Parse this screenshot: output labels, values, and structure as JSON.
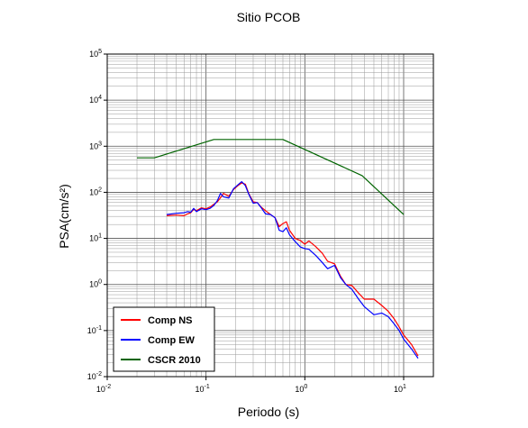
{
  "chart_data": {
    "type": "line",
    "title": "Sitio PCOB",
    "xlabel": "Periodo (s)",
    "ylabel": "PSA(cm/s²)",
    "x_scale": "log",
    "y_scale": "log",
    "xlim": [
      0.01,
      20
    ],
    "ylim": [
      0.01,
      100000
    ],
    "grid": true,
    "x_ticks": [
      {
        "base": "10",
        "exp": "-2"
      },
      {
        "base": "10",
        "exp": "-1"
      },
      {
        "base": "10",
        "exp": "0"
      },
      {
        "base": "10",
        "exp": "1"
      }
    ],
    "y_ticks": [
      {
        "base": "10",
        "exp": "-2"
      },
      {
        "base": "10",
        "exp": "-1"
      },
      {
        "base": "10",
        "exp": "0"
      },
      {
        "base": "10",
        "exp": "1"
      },
      {
        "base": "10",
        "exp": "2"
      },
      {
        "base": "10",
        "exp": "3"
      },
      {
        "base": "10",
        "exp": "4"
      },
      {
        "base": "10",
        "exp": "5"
      }
    ],
    "legend_position": "bottom-left",
    "series": [
      {
        "name": "Comp NS",
        "color": "#ff0000",
        "x": [
          0.04,
          0.05,
          0.06,
          0.065,
          0.07,
          0.075,
          0.08,
          0.09,
          0.1,
          0.11,
          0.12,
          0.13,
          0.14,
          0.15,
          0.17,
          0.19,
          0.21,
          0.23,
          0.25,
          0.27,
          0.3,
          0.33,
          0.36,
          0.4,
          0.45,
          0.5,
          0.55,
          0.6,
          0.65,
          0.7,
          0.8,
          0.9,
          1.0,
          1.1,
          1.3,
          1.5,
          1.7,
          2.0,
          2.3,
          2.6,
          3.0,
          3.5,
          4.0,
          5.0,
          6.0,
          7.0,
          8.0,
          9.0,
          10.0,
          12.0,
          14.0
        ],
        "y": [
          31,
          32,
          31,
          34,
          36,
          43,
          40,
          46,
          44,
          48,
          55,
          62,
          76,
          95,
          82,
          115,
          140,
          160,
          150,
          95,
          62,
          60,
          48,
          40,
          33,
          28,
          18,
          21,
          23,
          15,
          10,
          9,
          7.5,
          8.8,
          6.5,
          4.8,
          3.2,
          2.8,
          1.5,
          1.0,
          0.95,
          0.65,
          0.48,
          0.48,
          0.35,
          0.26,
          0.18,
          0.12,
          0.08,
          0.05,
          0.028
        ]
      },
      {
        "name": "Comp EW",
        "color": "#0000ff",
        "x": [
          0.04,
          0.05,
          0.06,
          0.065,
          0.07,
          0.075,
          0.08,
          0.09,
          0.1,
          0.11,
          0.12,
          0.13,
          0.14,
          0.15,
          0.17,
          0.19,
          0.21,
          0.23,
          0.25,
          0.27,
          0.3,
          0.33,
          0.36,
          0.4,
          0.45,
          0.5,
          0.55,
          0.6,
          0.65,
          0.7,
          0.8,
          0.9,
          1.0,
          1.1,
          1.3,
          1.5,
          1.7,
          2.0,
          2.3,
          2.6,
          3.0,
          3.5,
          4.0,
          5.0,
          6.0,
          7.0,
          8.0,
          9.0,
          10.0,
          12.0,
          14.0
        ],
        "y": [
          33,
          35,
          36,
          38,
          37,
          45,
          38,
          44,
          42,
          45,
          52,
          66,
          95,
          80,
          75,
          120,
          145,
          170,
          140,
          92,
          58,
          60,
          47,
          34,
          33,
          28,
          15,
          14,
          17,
          12,
          8.5,
          6.5,
          6.0,
          5.8,
          4.2,
          3.0,
          2.2,
          2.6,
          1.4,
          1.0,
          0.78,
          0.48,
          0.33,
          0.22,
          0.24,
          0.2,
          0.14,
          0.1,
          0.065,
          0.04,
          0.025
        ]
      },
      {
        "name": "CSCR 2010",
        "color": "#006400",
        "x": [
          0.02,
          0.03,
          0.12,
          0.6,
          3.8,
          10.0
        ],
        "y": [
          560,
          560,
          1400,
          1400,
          230,
          33
        ]
      }
    ]
  }
}
